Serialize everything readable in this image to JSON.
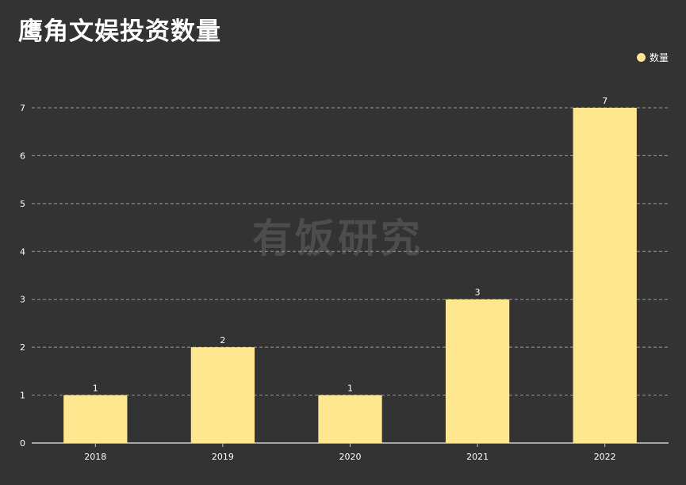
{
  "title": "鹰角文娱投资数量",
  "watermark": "有饭研究",
  "colors": {
    "background": "#333333",
    "bar": "#FFE78F",
    "grid": "#9a9a9a",
    "axis": "#cccccc"
  },
  "chart_data": {
    "type": "bar",
    "categories": [
      "2018",
      "2019",
      "2020",
      "2021",
      "2022"
    ],
    "series": [
      {
        "name": "数量",
        "values": [
          1,
          2,
          1,
          3,
          7
        ]
      }
    ],
    "y_ticks": [
      "0",
      "1",
      "2",
      "3",
      "4",
      "5",
      "6",
      "7"
    ],
    "ylim": [
      0,
      7
    ],
    "grid": true,
    "legend_position": "top-right"
  }
}
